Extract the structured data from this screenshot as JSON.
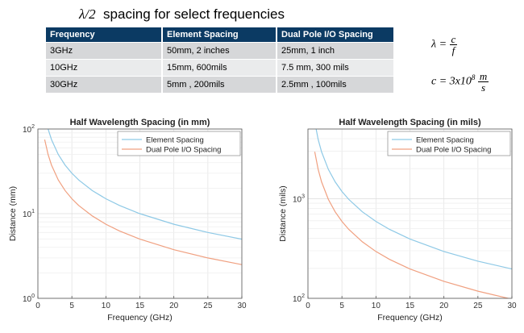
{
  "header": {
    "title_lambda": "λ/2",
    "title_text": "spacing for select frequencies"
  },
  "table": {
    "headers": [
      "Frequency",
      "Element Spacing",
      "Dual Pole I/O Spacing"
    ],
    "rows": [
      [
        "3GHz",
        "50mm, 2 inches",
        "25mm, 1 inch"
      ],
      [
        "10GHz",
        "15mm, 600mils",
        "7.5 mm, 300 mils"
      ],
      [
        "30GHz",
        "5mm , 200mils",
        "2.5mm , 100mils"
      ]
    ]
  },
  "formulas": {
    "lambda": {
      "lhs": "λ =",
      "num": "c",
      "den": "f"
    },
    "speed": {
      "lhs": "c = 3x10",
      "exp": "8",
      "num": "m",
      "den": "s"
    }
  },
  "colors": {
    "element": "#8ec9e6",
    "dual": "#f0a080",
    "header_bg": "#0b3a63"
  },
  "chart_data": [
    {
      "type": "line",
      "title": "Half Wavelength Spacing (in mm)",
      "xlabel": "Frequency (GHz)",
      "ylabel": "Distance (mm)",
      "xlim": [
        0,
        30
      ],
      "ylim": [
        1,
        100
      ],
      "yscale": "log",
      "x_ticks": [
        0,
        5,
        10,
        15,
        20,
        25,
        30
      ],
      "y_ticks": [
        {
          "base": "10",
          "exp": "0"
        },
        {
          "base": "10",
          "exp": "1"
        },
        {
          "base": "10",
          "exp": "2"
        }
      ],
      "grid": true,
      "legend_position": "top-right",
      "series": [
        {
          "name": "Element Spacing",
          "x": [
            1,
            1.5,
            2,
            3,
            4,
            5,
            6,
            8,
            10,
            12,
            15,
            20,
            25,
            30
          ],
          "values": [
            150,
            100,
            75,
            50,
            37.5,
            30,
            25,
            18.75,
            15,
            12.5,
            10,
            7.5,
            6,
            5
          ]
        },
        {
          "name": "Dual Pole I/O Spacing",
          "x": [
            1,
            1.5,
            2,
            3,
            4,
            5,
            6,
            8,
            10,
            12,
            15,
            20,
            25,
            30
          ],
          "values": [
            75,
            50,
            37.5,
            25,
            18.75,
            15,
            12.5,
            9.4,
            7.5,
            6.25,
            5,
            3.75,
            3,
            2.5
          ]
        }
      ]
    },
    {
      "type": "line",
      "title": "Half Wavelength Spacing (in mils)",
      "xlabel": "Frequency (GHz)",
      "ylabel": "Distance (mils)",
      "xlim": [
        0,
        30
      ],
      "ylim": [
        100,
        5000
      ],
      "yscale": "log",
      "x_ticks": [
        0,
        5,
        10,
        15,
        20,
        25,
        30
      ],
      "y_ticks": [
        {
          "base": "10",
          "exp": "2"
        },
        {
          "base": "10",
          "exp": "3"
        }
      ],
      "grid": true,
      "legend_position": "top-right",
      "series": [
        {
          "name": "Element Spacing",
          "x": [
            1,
            1.5,
            2,
            3,
            4,
            5,
            6,
            8,
            10,
            12,
            15,
            20,
            25,
            30
          ],
          "values": [
            5905,
            3937,
            2953,
            1969,
            1476,
            1181,
            984,
            738,
            591,
            492,
            394,
            295,
            236,
            197
          ]
        },
        {
          "name": "Dual Pole I/O Spacing",
          "x": [
            1,
            1.5,
            2,
            3,
            4,
            5,
            6,
            8,
            10,
            12,
            15,
            20,
            25,
            30
          ],
          "values": [
            2953,
            1969,
            1476,
            984,
            738,
            591,
            492,
            369,
            295,
            246,
            197,
            148,
            118,
            98
          ]
        }
      ]
    }
  ]
}
